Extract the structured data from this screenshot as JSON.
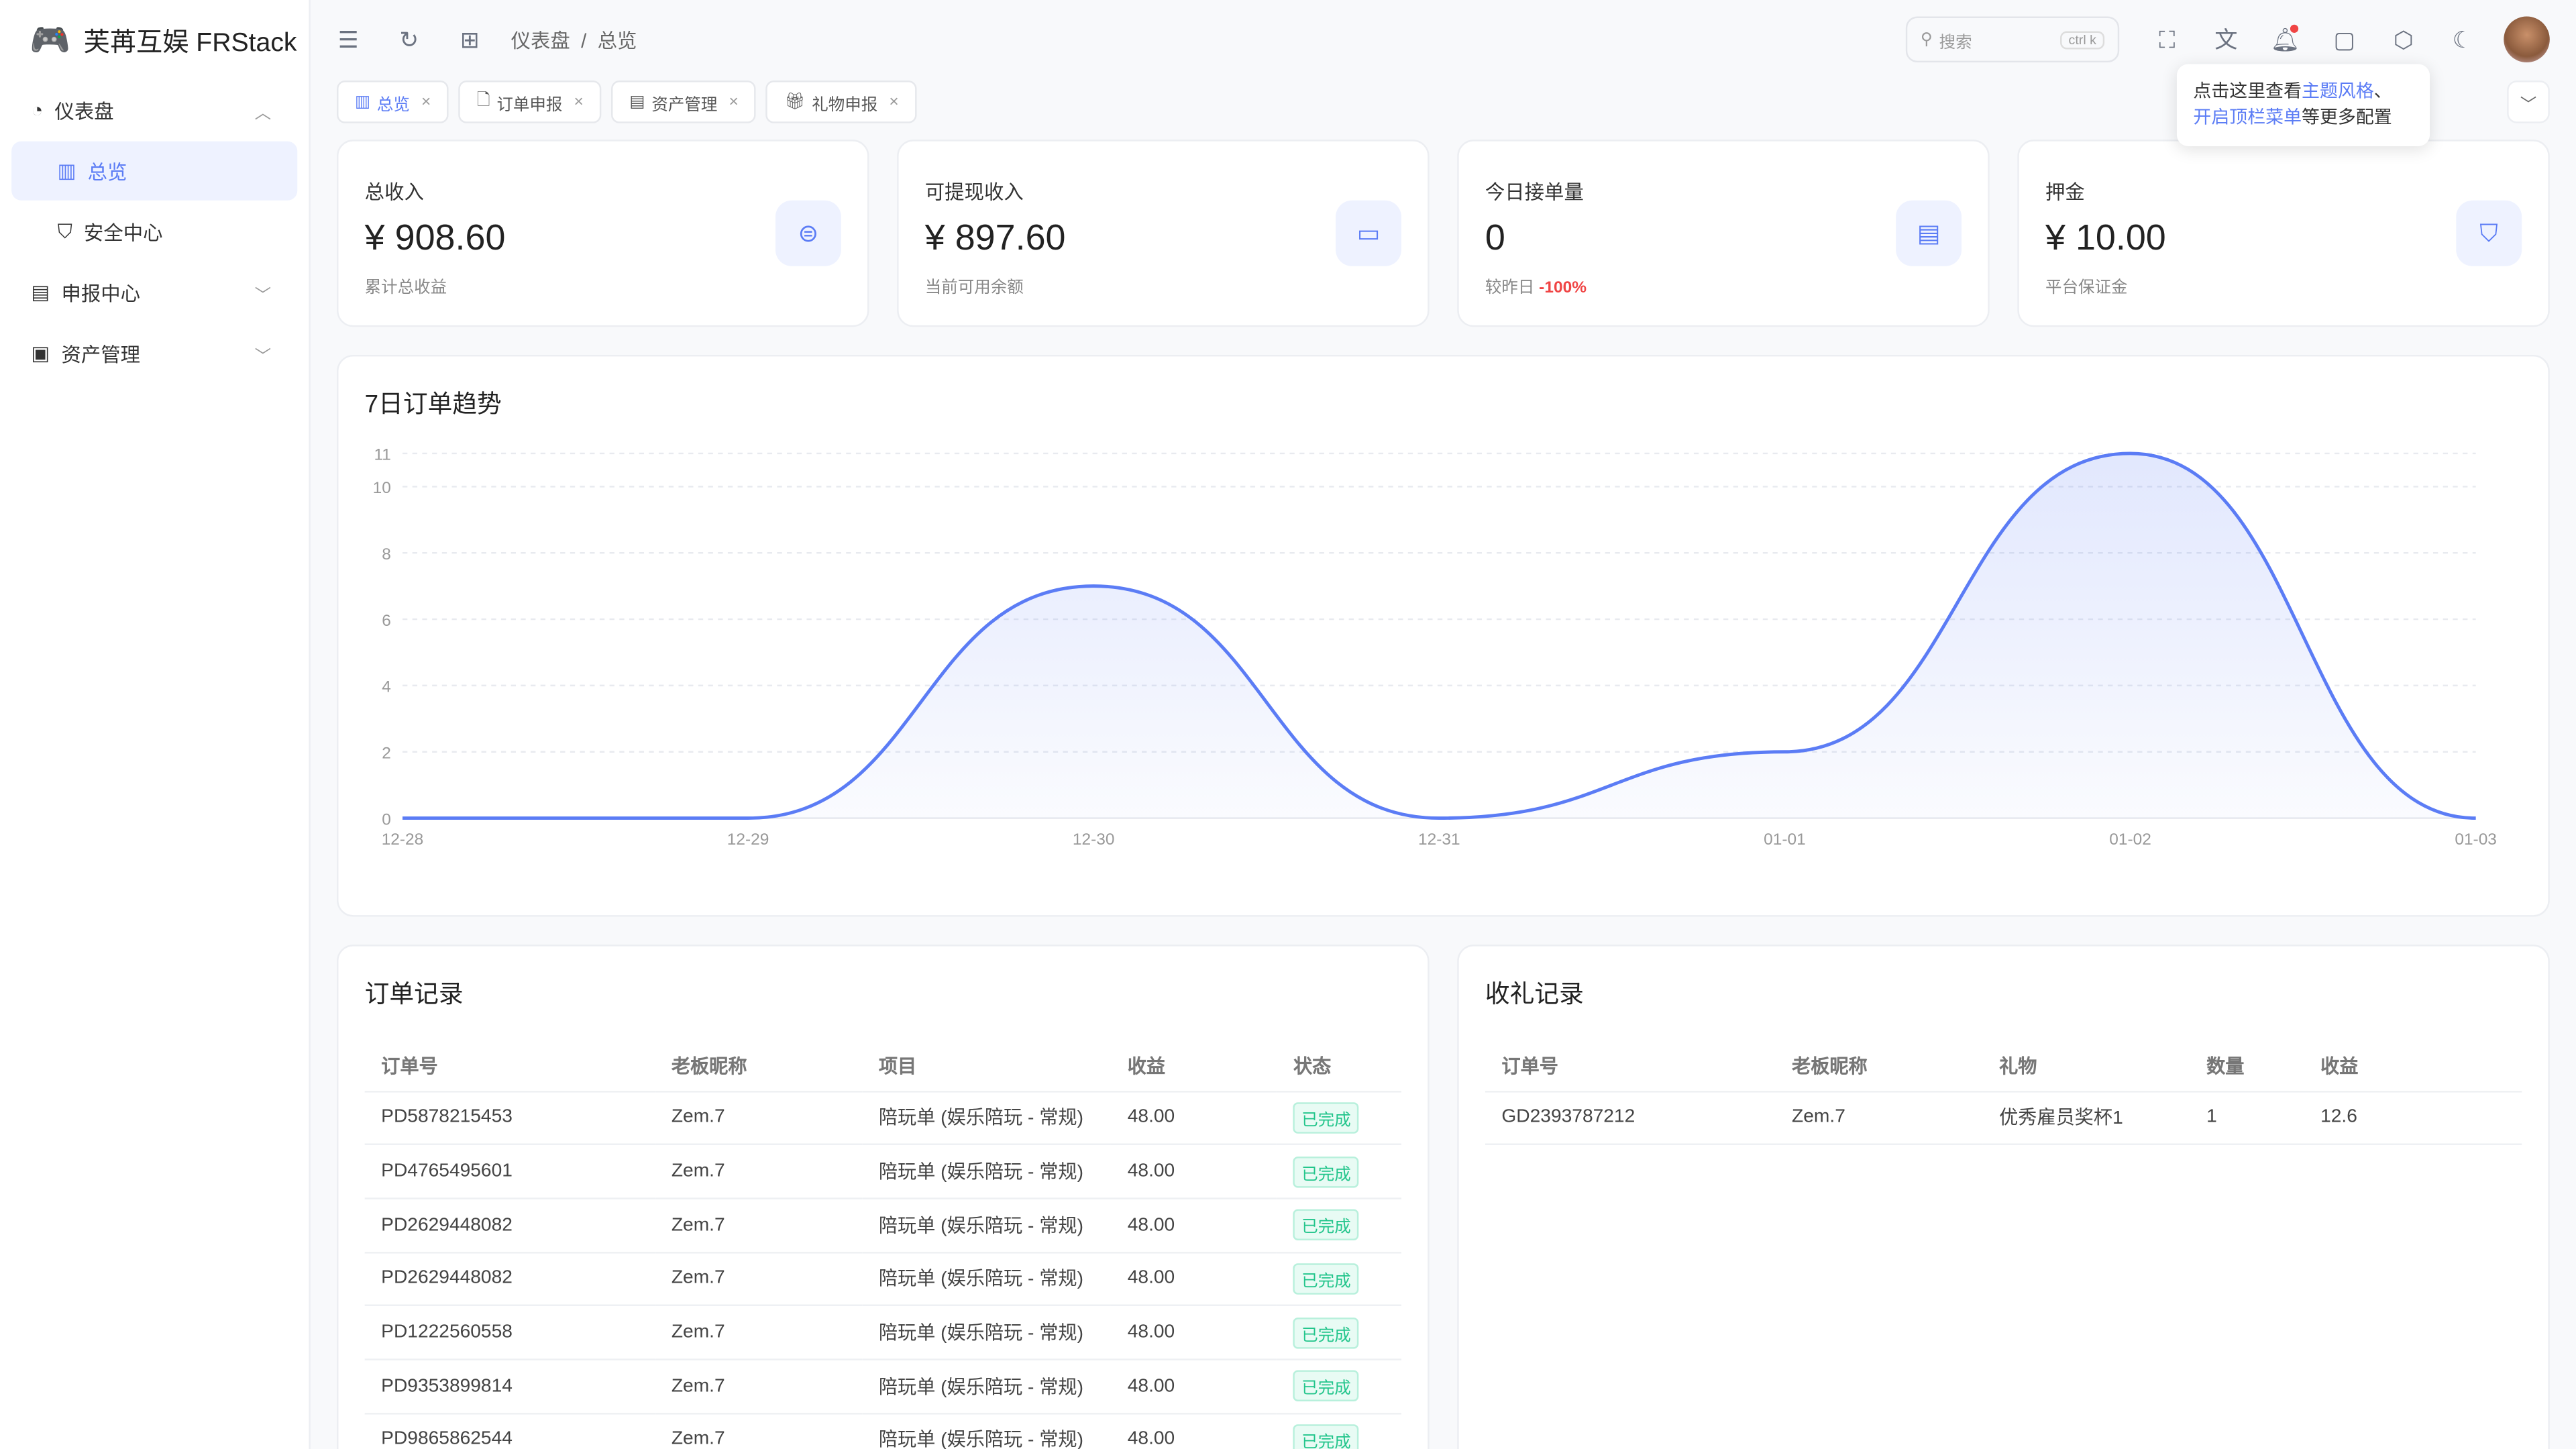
{
  "app": {
    "title": "芙苒互娱 FRStack"
  },
  "sidebar": {
    "items": [
      {
        "label": "仪表盘",
        "icon": "pie-chart-icon",
        "expanded": true
      },
      {
        "label": "总览",
        "icon": "bar-chart-icon",
        "active": true
      },
      {
        "label": "安全中心",
        "icon": "shield-icon"
      },
      {
        "label": "申报中心",
        "icon": "document-icon",
        "expanded": false
      },
      {
        "label": "资产管理",
        "icon": "wallet-icon",
        "expanded": false
      }
    ]
  },
  "header": {
    "breadcrumb": [
      "仪表盘",
      "总览"
    ],
    "search_placeholder": "搜索",
    "search_shortcut": "ctrl k"
  },
  "tabs": [
    {
      "label": "总览",
      "active": true
    },
    {
      "label": "订单申报"
    },
    {
      "label": "资产管理"
    },
    {
      "label": "礼物申报"
    }
  ],
  "tooltip": {
    "p1": "点击这里查看",
    "l1": "主题风格",
    "p2": "、",
    "l2": "开启顶栏菜单",
    "p3": "等更多配置"
  },
  "stats": [
    {
      "label": "总收入",
      "value": "¥ 908.60",
      "sub": "累计总收益",
      "icon": "yen-coin-icon"
    },
    {
      "label": "可提现收入",
      "value": "¥ 897.60",
      "sub": "当前可用余额",
      "icon": "wallet-icon"
    },
    {
      "label": "今日接单量",
      "value": "0",
      "sub": "较昨日",
      "delta": "-100%",
      "icon": "receipt-icon"
    },
    {
      "label": "押金",
      "value": "¥ 10.00",
      "sub": "平台保证金",
      "icon": "shield-check-icon"
    }
  ],
  "colors": {
    "accent": "#5b7cf5",
    "success": "#22c58b",
    "danger": "#f04444"
  },
  "chart_data": {
    "type": "area",
    "title": "7日订单趋势",
    "categories": [
      "12-28",
      "12-29",
      "12-30",
      "12-31",
      "01-01",
      "01-02",
      "01-03"
    ],
    "values": [
      0,
      0,
      7,
      0,
      2,
      11,
      0
    ],
    "yticks": [
      0,
      2,
      4,
      6,
      8,
      10,
      11
    ],
    "ylim": [
      0,
      11
    ],
    "grid": true,
    "smooth": true
  },
  "orders": {
    "title": "订单记录",
    "columns": [
      "订单号",
      "老板昵称",
      "项目",
      "收益",
      "状态"
    ],
    "rows": [
      [
        "PD5878215453",
        "Zem.7",
        "陪玩单 (娱乐陪玩 - 常规)",
        "48.00",
        "已完成"
      ],
      [
        "PD4765495601",
        "Zem.7",
        "陪玩单 (娱乐陪玩 - 常规)",
        "48.00",
        "已完成"
      ],
      [
        "PD2629448082",
        "Zem.7",
        "陪玩单 (娱乐陪玩 - 常规)",
        "48.00",
        "已完成"
      ],
      [
        "PD2629448082",
        "Zem.7",
        "陪玩单 (娱乐陪玩 - 常规)",
        "48.00",
        "已完成"
      ],
      [
        "PD1222560558",
        "Zem.7",
        "陪玩单 (娱乐陪玩 - 常规)",
        "48.00",
        "已完成"
      ],
      [
        "PD9353899814",
        "Zem.7",
        "陪玩单 (娱乐陪玩 - 常规)",
        "48.00",
        "已完成"
      ],
      [
        "PD9865862544",
        "Zem.7",
        "陪玩单 (娱乐陪玩 - 常规)",
        "48.00",
        "已完成"
      ]
    ]
  },
  "gifts": {
    "title": "收礼记录",
    "columns": [
      "订单号",
      "老板昵称",
      "礼物",
      "数量",
      "收益"
    ],
    "rows": [
      [
        "GD2393787212",
        "Zem.7",
        "优秀雇员奖杯1",
        "1",
        "12.6"
      ]
    ]
  }
}
